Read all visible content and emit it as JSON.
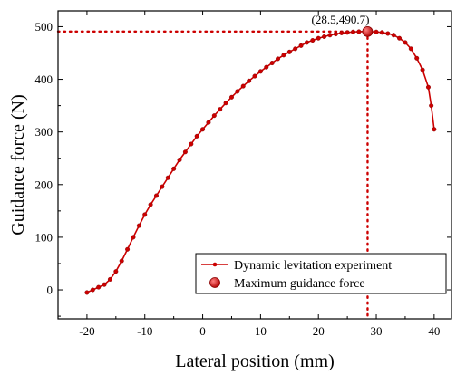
{
  "chart_data": {
    "type": "line",
    "xlabel": "Lateral position (mm)",
    "ylabel": "Guidance force (N)",
    "xlim": [
      -25,
      43
    ],
    "ylim": [
      -55,
      530
    ],
    "xticks": [
      -20,
      -10,
      0,
      10,
      20,
      30,
      40
    ],
    "yticks": [
      0,
      100,
      200,
      300,
      400,
      500
    ],
    "legend_position": "bottom-right",
    "series": [
      {
        "name": "Dynamic levitation experiment",
        "color": "#cc0000",
        "marker": "circle",
        "x": [
          -20,
          -19,
          -18,
          -17,
          -16,
          -15,
          -14,
          -13,
          -12,
          -11,
          -10,
          -9,
          -8,
          -7,
          -6,
          -5,
          -4,
          -3,
          -2,
          -1,
          0,
          1,
          2,
          3,
          4,
          5,
          6,
          7,
          8,
          9,
          10,
          11,
          12,
          13,
          14,
          15,
          16,
          17,
          18,
          19,
          20,
          21,
          22,
          23,
          24,
          25,
          26,
          27,
          28,
          28.5,
          29,
          30,
          31,
          32,
          33,
          34,
          35,
          36,
          37,
          38,
          39,
          39.5,
          40
        ],
        "y": [
          -5,
          0,
          5,
          10,
          20,
          35,
          55,
          77,
          100,
          122,
          143,
          162,
          179,
          196,
          213,
          230,
          247,
          262,
          277,
          292,
          305,
          318,
          331,
          343,
          355,
          366,
          377,
          387,
          397,
          406,
          415,
          423,
          431,
          439,
          446,
          452,
          458,
          464,
          470,
          474,
          478,
          481,
          484,
          486,
          488,
          489,
          490,
          490.5,
          490.7,
          490.7,
          490.5,
          490,
          489,
          487,
          484,
          478,
          470,
          458,
          440,
          418,
          385,
          350,
          305
        ]
      }
    ],
    "highlight": {
      "name": "Maximum guidance force",
      "x": 28.5,
      "y": 490.7,
      "label": "(28.5,490.7)"
    }
  }
}
